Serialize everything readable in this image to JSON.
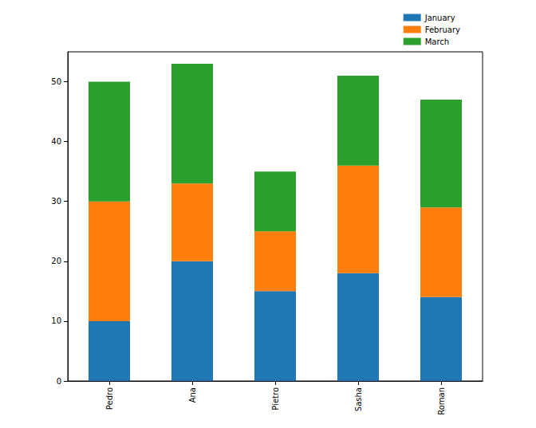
{
  "chart_data": {
    "type": "bar",
    "stacked": true,
    "categories": [
      "Pedro",
      "Ana",
      "Pietro",
      "Sasha",
      "Roman"
    ],
    "series": [
      {
        "name": "January",
        "color": "#1f77b4",
        "values": [
          10,
          20,
          15,
          18,
          14
        ]
      },
      {
        "name": "February",
        "color": "#ff7f0e",
        "values": [
          20,
          13,
          10,
          18,
          15
        ]
      },
      {
        "name": "March",
        "color": "#2ca02c",
        "values": [
          20,
          20,
          10,
          15,
          18
        ]
      }
    ],
    "ylim": [
      0,
      55
    ],
    "yticks": [
      0,
      10,
      20,
      30,
      40,
      50
    ],
    "grid": false,
    "legend": "upper right"
  }
}
